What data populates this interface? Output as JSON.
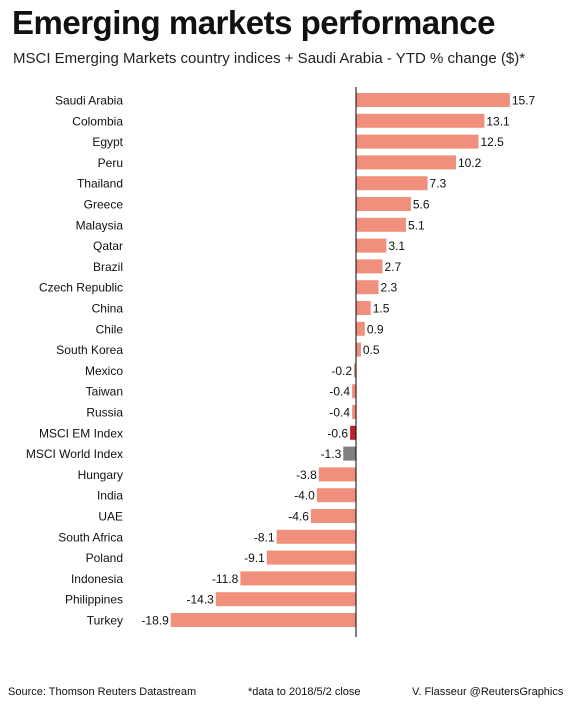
{
  "header": {
    "title": "Emerging markets performance",
    "subtitle": "MSCI Emerging Markets country indices + Saudi Arabia - YTD % change ($)*"
  },
  "footer": {
    "source": "Source: Thomson Reuters Datastream",
    "note": "*data to 2018/5/2 close",
    "credit": "V. Flasseur @ReutersGraphics"
  },
  "colors": {
    "default_bar": "#f0907c",
    "em_index_bar": "#c0232a",
    "world_index_bar": "#808080",
    "axis": "#000000"
  },
  "chart_data": {
    "type": "bar",
    "orientation": "horizontal",
    "categories": [
      "Saudi Arabia",
      "Colombia",
      "Egypt",
      "Peru",
      "Thailand",
      "Greece",
      "Malaysia",
      "Qatar",
      "Brazil",
      "Czech Republic",
      "China",
      "Chile",
      "South Korea",
      "Mexico",
      "Taiwan",
      "Russia",
      "MSCI EM Index",
      "MSCI World Index",
      "Hungary",
      "India",
      "UAE",
      "South Africa",
      "Poland",
      "Indonesia",
      "Philippines",
      "Turkey"
    ],
    "values": [
      15.7,
      13.1,
      12.5,
      10.2,
      7.3,
      5.6,
      5.1,
      3.1,
      2.7,
      2.3,
      1.5,
      0.9,
      0.5,
      -0.2,
      -0.4,
      -0.4,
      -0.6,
      -1.3,
      -3.8,
      -4.0,
      -4.6,
      -8.1,
      -9.1,
      -11.8,
      -14.3,
      -18.9
    ],
    "value_labels": [
      "15.7",
      "13.1",
      "12.5",
      "10.2",
      "7.3",
      "5.6",
      "5.1",
      "3.1",
      "2.7",
      "2.3",
      "1.5",
      "0.9",
      "0.5",
      "-0.2",
      "-0.4",
      "-0.4",
      "-0.6",
      "-1.3",
      "-3.8",
      "-4.0",
      "-4.6",
      "-8.1",
      "-9.1",
      "-11.8",
      "-14.3",
      "-18.9"
    ],
    "highlight": {
      "MSCI EM Index": "em_index_bar",
      "MSCI World Index": "world_index_bar"
    },
    "xlabel": "",
    "ylabel": "",
    "grid": false,
    "legend": "none"
  }
}
